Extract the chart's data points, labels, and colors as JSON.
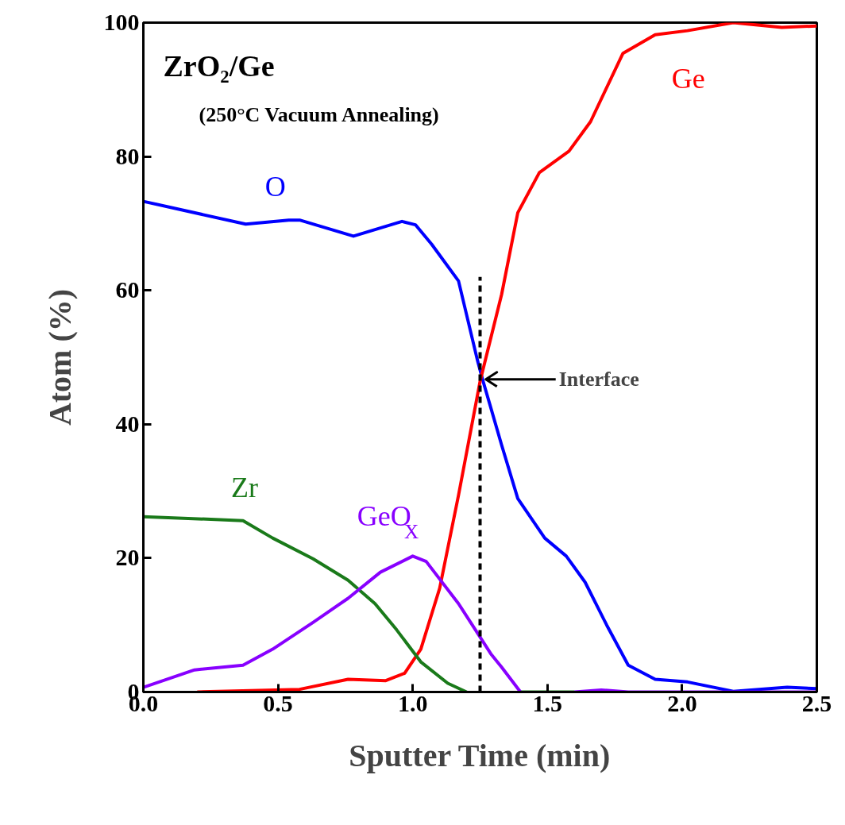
{
  "chart_data": {
    "type": "line",
    "title": "ZrO₂/Ge",
    "subtitle": "(250°C Vacuum Annealing)",
    "xlabel": "Sputter Time (min)",
    "ylabel": "Atom (%)",
    "xlim": [
      0,
      2.5
    ],
    "ylim": [
      0,
      100
    ],
    "xticks": [
      {
        "value": 0,
        "label": "0.0"
      },
      0.5,
      {
        "value": 1,
        "label": "1.0"
      },
      1.5,
      {
        "value": 2,
        "label": "2.0"
      },
      2.5
    ],
    "yticks": [
      0,
      20,
      40,
      60,
      80,
      100
    ],
    "grid": false,
    "marker": "none",
    "line_style": "solid",
    "annotations": [
      "Interface"
    ],
    "series": [
      {
        "name": "O",
        "color": "#0000ff",
        "x": [
          0,
          0.38,
          0.54,
          0.58,
          0.78,
          0.96,
          1.01,
          1.07,
          1.17,
          1.24,
          1.26,
          1.33,
          1.39,
          1.49,
          1.57,
          1.64,
          1.72,
          1.8,
          1.9,
          2.02,
          2.19,
          2.39,
          2.5
        ],
        "values": [
          73.3,
          69.9,
          70.5,
          70.5,
          68.1,
          70.3,
          69.8,
          66.9,
          61.4,
          49.6,
          46.6,
          36.9,
          28.9,
          23.0,
          20.3,
          16.4,
          10.0,
          4.0,
          1.9,
          1.5,
          0.1,
          0.7,
          0.5
        ]
      },
      {
        "name": "Ge",
        "color": "#ff0000",
        "x": [
          0.2,
          0.58,
          0.76,
          0.9,
          0.97,
          1.03,
          1.1,
          1.17,
          1.25,
          1.33,
          1.39,
          1.47,
          1.58,
          1.66,
          1.78,
          1.9,
          2.02,
          2.19,
          2.37,
          2.5
        ],
        "values": [
          0,
          0.4,
          1.9,
          1.7,
          2.8,
          6.4,
          15.5,
          29.4,
          46.4,
          59.4,
          71.6,
          77.6,
          80.8,
          85.2,
          95.4,
          98.2,
          98.8,
          100,
          99.3,
          99.5
        ]
      },
      {
        "name": "Zr",
        "color": "#1a7a1a",
        "x": [
          0,
          0.37,
          0.48,
          0.63,
          0.76,
          0.86,
          0.94,
          1.03,
          1.13,
          1.2,
          1.3,
          1.4,
          1.6
        ],
        "values": [
          26.2,
          25.6,
          23.0,
          19.9,
          16.7,
          13.2,
          9.3,
          4.5,
          1.3,
          0,
          null,
          0,
          0
        ]
      },
      {
        "name": "GeO$_{X}$",
        "color": "#8800ff",
        "x": [
          0,
          0.19,
          0.37,
          0.48,
          0.63,
          0.76,
          0.88,
          1.0,
          1.05,
          1.17,
          1.29,
          1.33,
          1.4,
          1.5,
          1.6,
          1.7,
          1.8,
          2.5
        ],
        "values": [
          0.7,
          3.3,
          4.0,
          6.4,
          10.4,
          14.0,
          17.9,
          20.3,
          19.5,
          13.2,
          5.7,
          3.7,
          0,
          null,
          0,
          0.3,
          0,
          0
        ]
      },
      {
        "type": "line",
        "color": "#000000",
        "line_style": "dashed",
        "x": [
          1.25,
          1.25
        ],
        "values": [
          0,
          62
        ]
      }
    ]
  }
}
